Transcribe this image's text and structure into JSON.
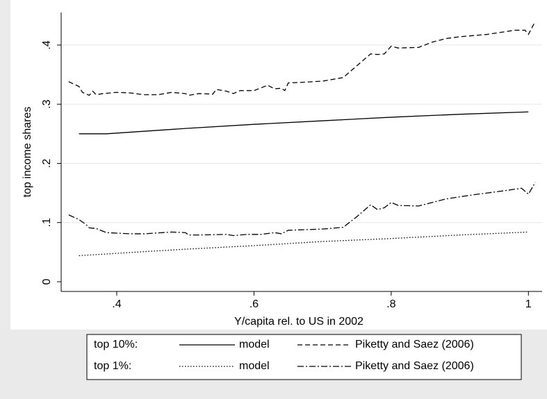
{
  "chart_data": {
    "type": "line",
    "x_label": "Y/capita rel. to US in 2002",
    "y_label": "top income shares",
    "xlim": [
      0.319,
      1.02
    ],
    "ylim": [
      -0.0164,
      0.455
    ],
    "xticks": [
      {
        "value": 0.4,
        "label": ".4"
      },
      {
        "value": 0.6,
        "label": ".6"
      },
      {
        "value": 0.8,
        "label": ".8"
      },
      1
    ],
    "yticks": [
      0,
      {
        "value": 0.1,
        "label": ".1"
      },
      {
        "value": 0.2,
        "label": ".2"
      },
      {
        "value": 0.3,
        "label": ".3"
      },
      {
        "value": 0.4,
        "label": ".4"
      }
    ],
    "grid": true,
    "legend": {
      "position": "bottom",
      "rows": [
        "top 10%:",
        "top 1%:"
      ]
    },
    "series": [
      {
        "name": "model",
        "color": "#000000",
        "dash": "solid",
        "x": [
          0.345,
          0.385,
          0.5,
          0.6,
          0.7,
          0.8,
          0.9,
          1.0
        ],
        "values": [
          0.25,
          0.25,
          0.259,
          0.266,
          0.272,
          0.278,
          0.283,
          0.287
        ]
      },
      {
        "name": "Piketty and Saez (2006)",
        "color": "#000000",
        "dash": "dash",
        "x": [
          0.33,
          0.345,
          0.35,
          0.36,
          0.365,
          0.37,
          0.38,
          0.4,
          0.42,
          0.44,
          0.46,
          0.48,
          0.5,
          0.505,
          0.52,
          0.54,
          0.545,
          0.56,
          0.57,
          0.58,
          0.6,
          0.62,
          0.63,
          0.64,
          0.645,
          0.65,
          0.67,
          0.7,
          0.73,
          0.75,
          0.77,
          0.78,
          0.79,
          0.8,
          0.81,
          0.84,
          0.86,
          0.88,
          0.9,
          0.94,
          0.98,
          0.995,
          1.0,
          1.01
        ],
        "values": [
          0.338,
          0.33,
          0.32,
          0.315,
          0.322,
          0.316,
          0.318,
          0.32,
          0.319,
          0.316,
          0.316,
          0.32,
          0.318,
          0.315,
          0.318,
          0.317,
          0.325,
          0.322,
          0.318,
          0.323,
          0.323,
          0.332,
          0.326,
          0.327,
          0.323,
          0.336,
          0.337,
          0.339,
          0.345,
          0.365,
          0.385,
          0.384,
          0.385,
          0.398,
          0.395,
          0.396,
          0.405,
          0.411,
          0.414,
          0.418,
          0.425,
          0.425,
          0.418,
          0.44
        ]
      },
      {
        "name": "model",
        "color": "#000000",
        "dash": "dot",
        "x": [
          0.345,
          0.4,
          0.5,
          0.6,
          0.7,
          0.8,
          0.9,
          1.0
        ],
        "values": [
          0.044,
          0.048,
          0.055,
          0.061,
          0.068,
          0.073,
          0.079,
          0.084
        ]
      },
      {
        "name": "Piketty and Saez (2006)",
        "color": "#000000",
        "dash": "dashdot",
        "x": [
          0.33,
          0.345,
          0.355,
          0.36,
          0.37,
          0.385,
          0.42,
          0.44,
          0.48,
          0.5,
          0.505,
          0.52,
          0.56,
          0.57,
          0.59,
          0.61,
          0.63,
          0.64,
          0.65,
          0.7,
          0.73,
          0.75,
          0.77,
          0.78,
          0.79,
          0.8,
          0.81,
          0.84,
          0.88,
          0.92,
          0.96,
          0.99,
          1.0,
          1.01
        ],
        "values": [
          0.113,
          0.105,
          0.097,
          0.091,
          0.09,
          0.083,
          0.081,
          0.081,
          0.084,
          0.083,
          0.079,
          0.079,
          0.08,
          0.078,
          0.08,
          0.08,
          0.083,
          0.081,
          0.087,
          0.089,
          0.092,
          0.11,
          0.13,
          0.122,
          0.125,
          0.134,
          0.129,
          0.128,
          0.14,
          0.147,
          0.153,
          0.158,
          0.148,
          0.168
        ]
      }
    ]
  }
}
